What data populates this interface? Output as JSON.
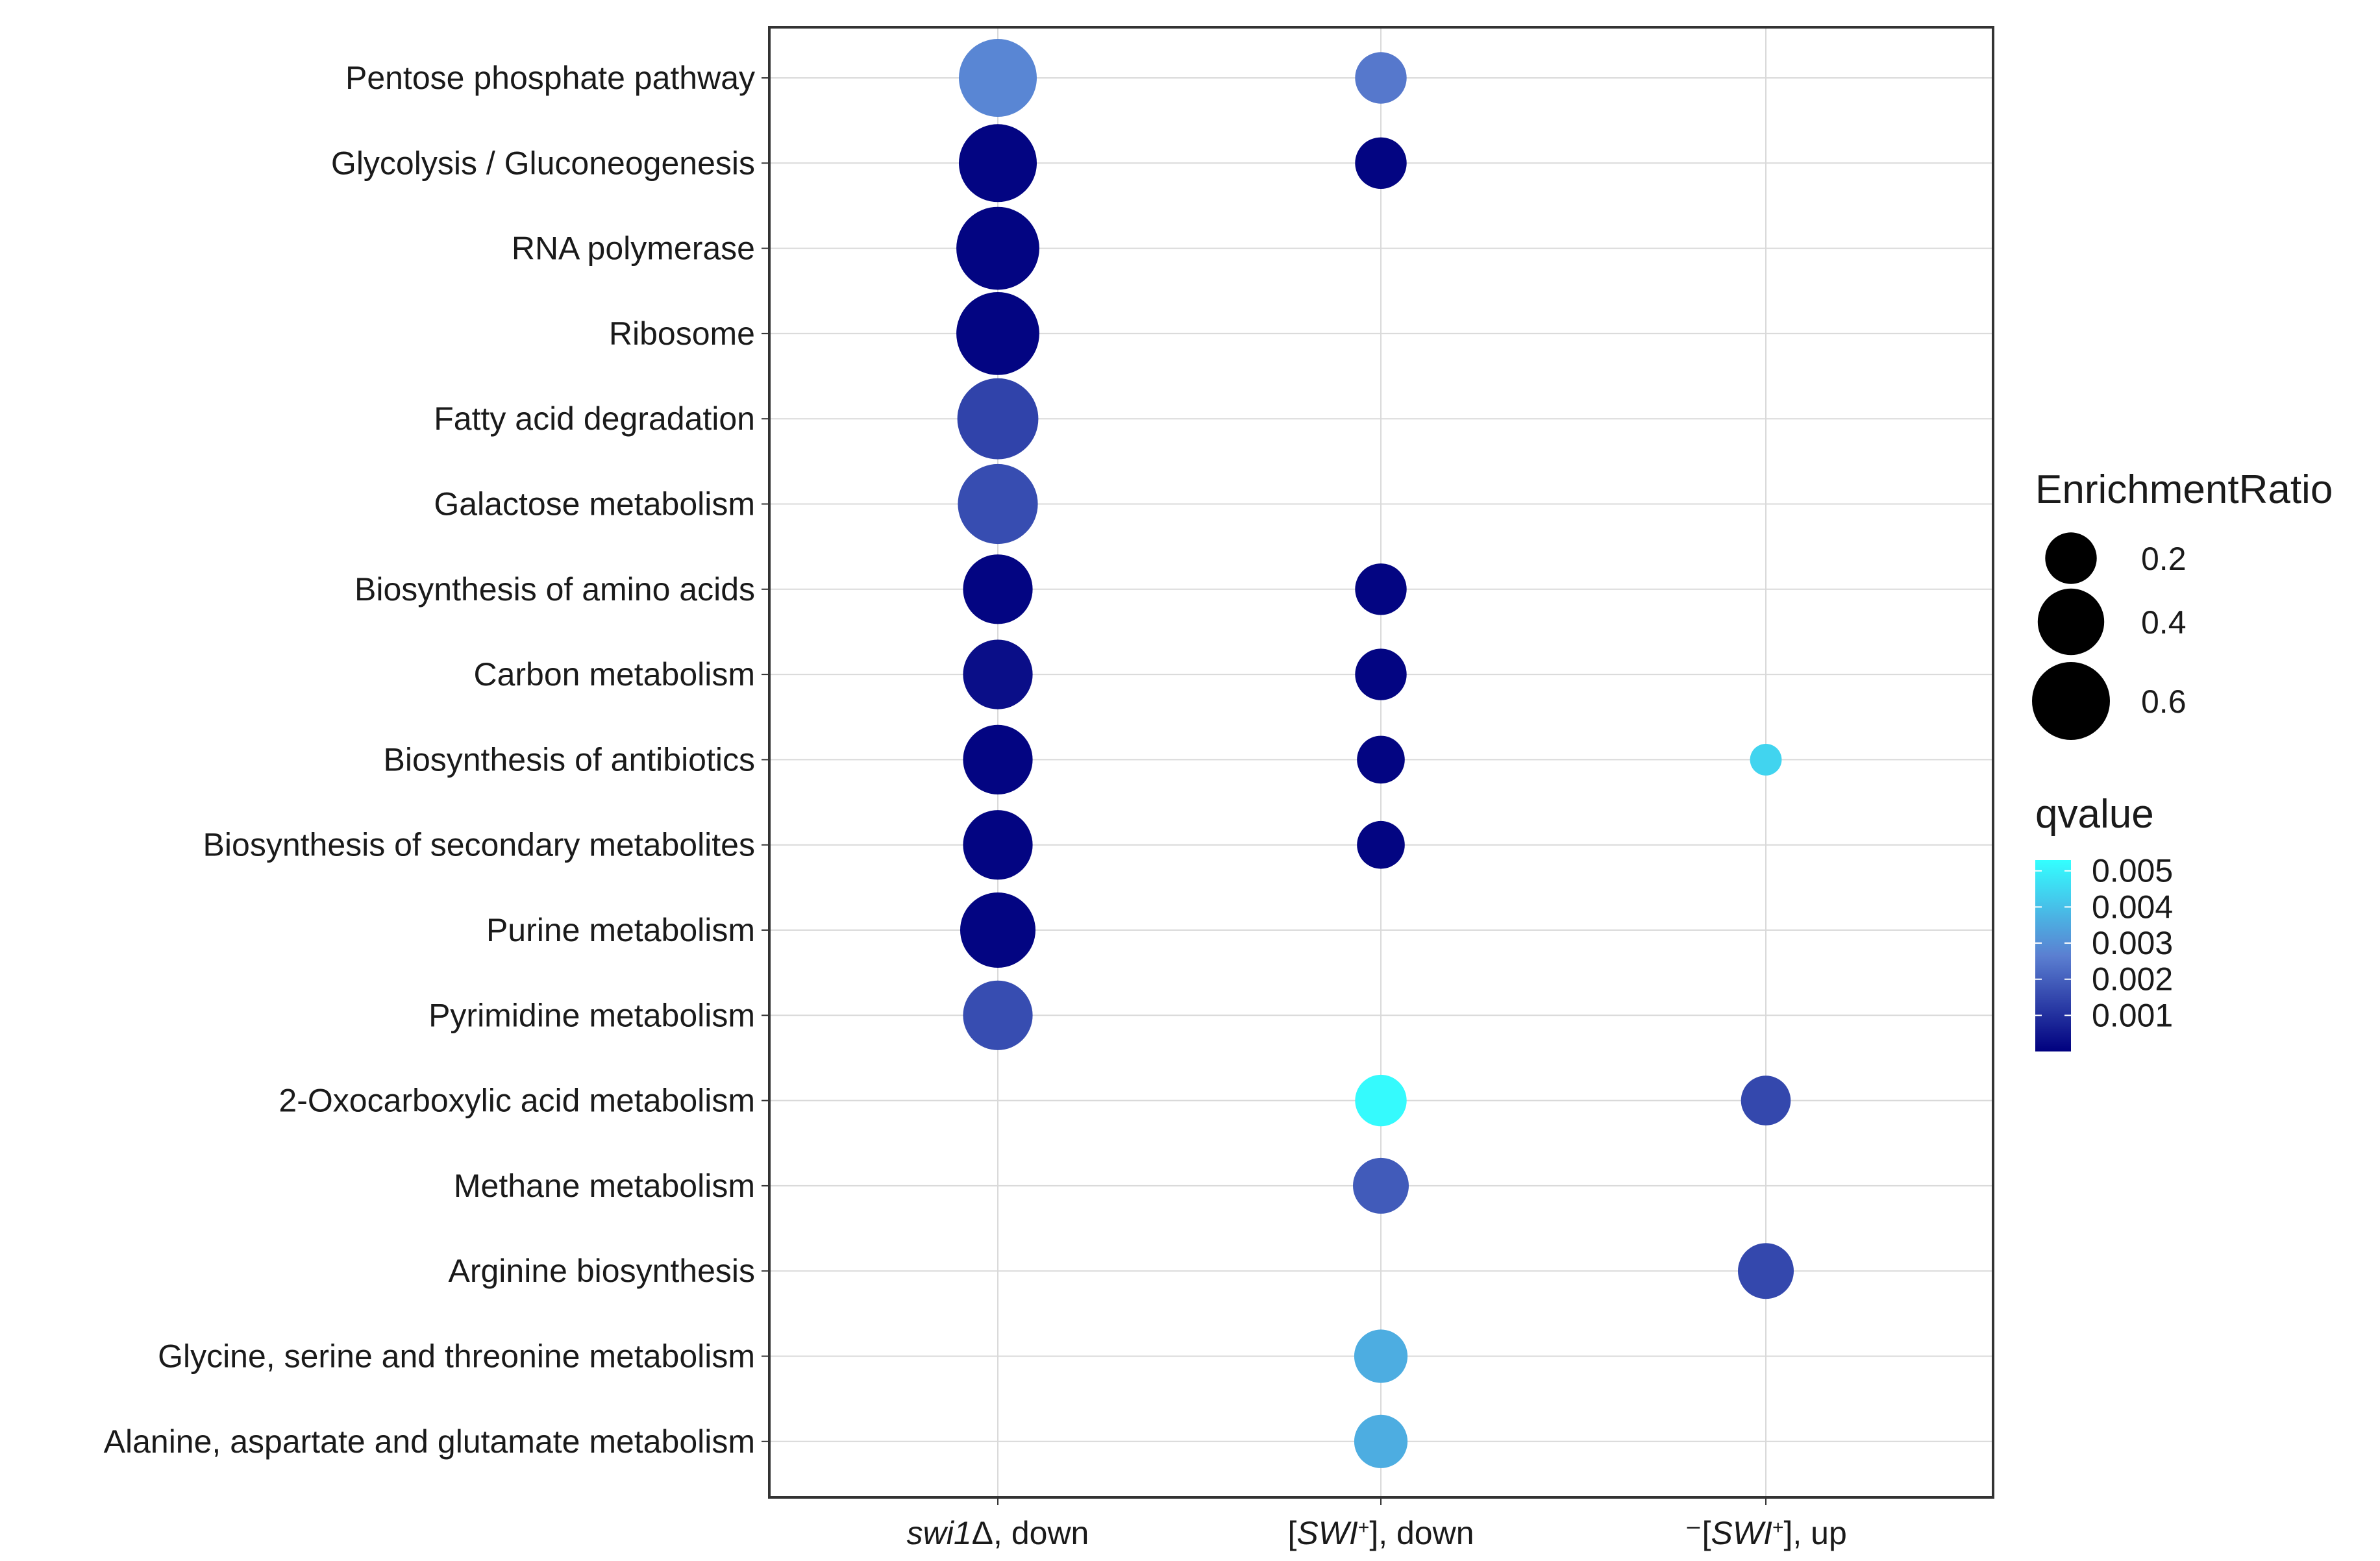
{
  "chart_data": {
    "type": "scatter",
    "title": "",
    "xlabel": "",
    "ylabel": "",
    "grid": true,
    "columns": [
      {
        "label": "swi1Δ, down",
        "parts": [
          {
            "t": "swi1",
            "i": true
          },
          {
            "t": "Δ, down",
            "i": false
          }
        ]
      },
      {
        "label": "[SWI+], down",
        "parts": [
          {
            "t": "[",
            "i": false
          },
          {
            "t": "SWI",
            "i": true
          },
          {
            "t": "+",
            "i": false,
            "sup": true
          },
          {
            "t": "], down",
            "i": false
          }
        ]
      },
      {
        "label": "⁻[SWI+], up",
        "parts": [
          {
            "t": "⁻[",
            "i": false
          },
          {
            "t": "SWI",
            "i": true
          },
          {
            "t": "+",
            "i": false,
            "sup": true
          },
          {
            "t": "], up",
            "i": false
          }
        ]
      }
    ],
    "categories": [
      "Pentose phosphate pathway",
      "Glycolysis / Gluconeogenesis",
      "RNA polymerase",
      "Ribosome",
      "Fatty acid degradation",
      "Galactose metabolism",
      "Biosynthesis of amino acids",
      "Carbon metabolism",
      "Biosynthesis of antibiotics",
      "Biosynthesis of secondary metabolites",
      "Purine metabolism",
      "Pyrimidine metabolism",
      "2-Oxocarboxylic acid metabolism",
      "Methane metabolism",
      "Arginine biosynthesis",
      "Glycine, serine and threonine metabolism",
      "Alanine, aspartate and glutamate metabolism"
    ],
    "points": [
      {
        "category": "Pentose phosphate pathway",
        "column": 0,
        "enrichment_ratio": 0.6,
        "qvalue": 0.0028
      },
      {
        "category": "Pentose phosphate pathway",
        "column": 1,
        "enrichment_ratio": 0.2,
        "qvalue": 0.0025
      },
      {
        "category": "Glycolysis / Gluconeogenesis",
        "column": 0,
        "enrichment_ratio": 0.6,
        "qvalue": 0.0001
      },
      {
        "category": "Glycolysis / Gluconeogenesis",
        "column": 1,
        "enrichment_ratio": 0.2,
        "qvalue": 0.0001
      },
      {
        "category": "RNA polymerase",
        "column": 0,
        "enrichment_ratio": 0.7,
        "qvalue": 0.0001
      },
      {
        "category": "Ribosome",
        "column": 0,
        "enrichment_ratio": 0.7,
        "qvalue": 0.0001
      },
      {
        "category": "Fatty acid degradation",
        "column": 0,
        "enrichment_ratio": 0.66,
        "qvalue": 0.0014
      },
      {
        "category": "Galactose metabolism",
        "column": 0,
        "enrichment_ratio": 0.64,
        "qvalue": 0.0016
      },
      {
        "category": "Biosynthesis of amino acids",
        "column": 0,
        "enrichment_ratio": 0.45,
        "qvalue": 0.0001
      },
      {
        "category": "Biosynthesis of amino acids",
        "column": 1,
        "enrichment_ratio": 0.2,
        "qvalue": 0.0001
      },
      {
        "category": "Carbon metabolism",
        "column": 0,
        "enrichment_ratio": 0.45,
        "qvalue": 0.0003
      },
      {
        "category": "Carbon metabolism",
        "column": 1,
        "enrichment_ratio": 0.2,
        "qvalue": 0.0001
      },
      {
        "category": "Biosynthesis of antibiotics",
        "column": 0,
        "enrichment_ratio": 0.45,
        "qvalue": 0.0001
      },
      {
        "category": "Biosynthesis of antibiotics",
        "column": 1,
        "enrichment_ratio": 0.16,
        "qvalue": 0.0001
      },
      {
        "category": "Biosynthesis of antibiotics",
        "column": 2,
        "enrichment_ratio": 0.04,
        "qvalue": 0.0044
      },
      {
        "category": "Biosynthesis of secondary metabolites",
        "column": 0,
        "enrichment_ratio": 0.45,
        "qvalue": 0.0001
      },
      {
        "category": "Biosynthesis of secondary metabolites",
        "column": 1,
        "enrichment_ratio": 0.16,
        "qvalue": 0.0001
      },
      {
        "category": "Purine metabolism",
        "column": 0,
        "enrichment_ratio": 0.55,
        "qvalue": 0.0001
      },
      {
        "category": "Pyrimidine metabolism",
        "column": 0,
        "enrichment_ratio": 0.45,
        "qvalue": 0.0016
      },
      {
        "category": "2-Oxocarboxylic acid metabolism",
        "column": 1,
        "enrichment_ratio": 0.2,
        "qvalue": 0.0052
      },
      {
        "category": "2-Oxocarboxylic acid metabolism",
        "column": 2,
        "enrichment_ratio": 0.18,
        "qvalue": 0.0015
      },
      {
        "category": "Methane metabolism",
        "column": 1,
        "enrichment_ratio": 0.25,
        "qvalue": 0.0019
      },
      {
        "category": "Arginine biosynthesis",
        "column": 2,
        "enrichment_ratio": 0.25,
        "qvalue": 0.0015
      },
      {
        "category": "Glycine, serine and threonine metabolism",
        "column": 1,
        "enrichment_ratio": 0.22,
        "qvalue": 0.0036
      },
      {
        "category": "Alanine, aspartate and glutamate metabolism",
        "column": 1,
        "enrichment_ratio": 0.22,
        "qvalue": 0.0036
      }
    ],
    "size_legend": {
      "title": "EnrichmentRatio",
      "labels": [
        "0.2",
        "0.4",
        "0.6"
      ],
      "values": [
        0.2,
        0.4,
        0.6
      ]
    },
    "color_legend": {
      "title": "qvalue",
      "labels": [
        "0.005",
        "0.004",
        "0.003",
        "0.002",
        "0.001"
      ],
      "values": [
        0.005,
        0.004,
        0.003,
        0.002,
        0.001
      ],
      "range": [
        0.0,
        0.0053
      ],
      "low_color": "#00007f",
      "mid_color": "#5b7fd1",
      "high_color": "#33ffff"
    },
    "colors": {
      "panel_border": "#333333",
      "grid": "#d9d9d9",
      "point_fill": "#000000"
    }
  }
}
